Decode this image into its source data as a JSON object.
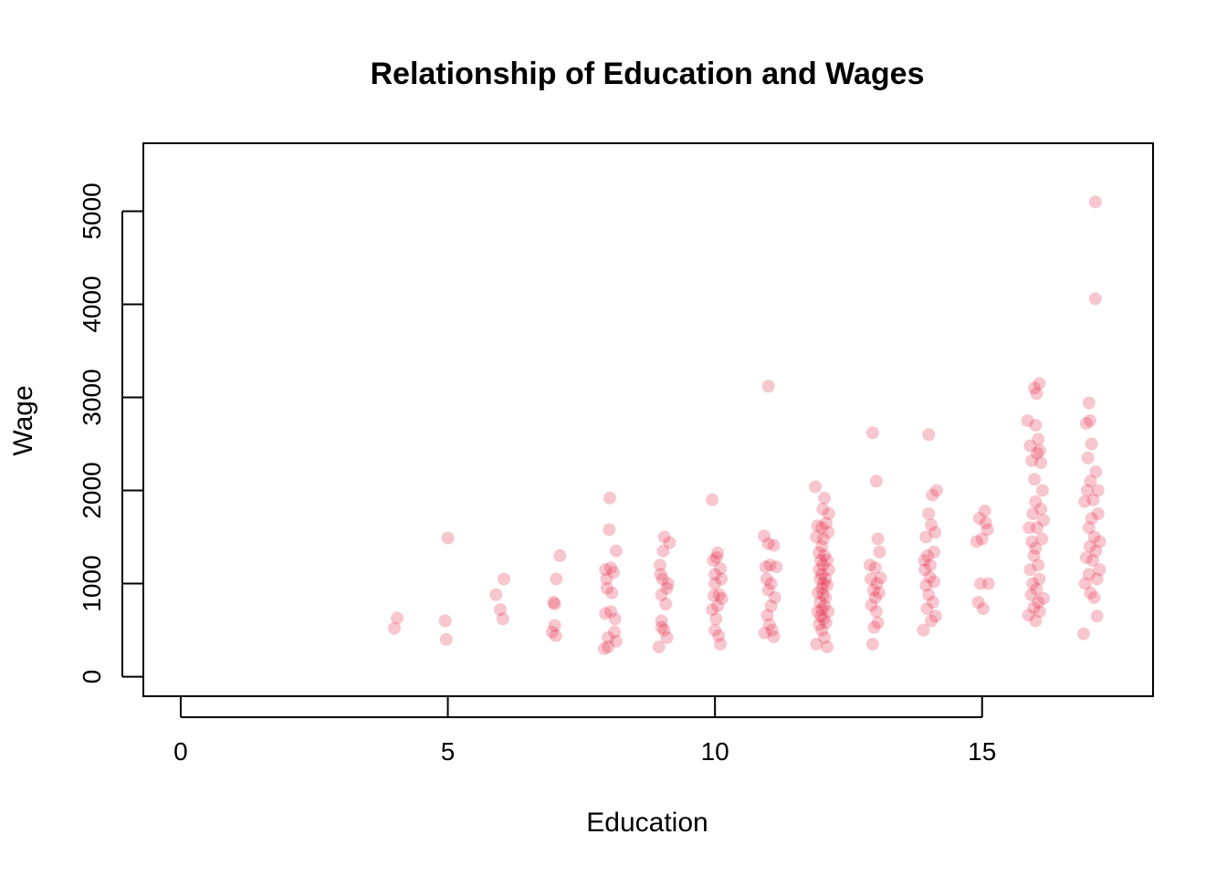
{
  "chart_data": {
    "type": "scatter",
    "title": "Relationship of Education and Wages",
    "xlabel": "Education",
    "ylabel": "Wage",
    "xlim": [
      -0.7,
      18.2
    ],
    "ylim": [
      -210,
      5730
    ],
    "xticks": [
      0,
      5,
      10,
      15
    ],
    "yticks": [
      0,
      1000,
      2000,
      3000,
      4000,
      5000
    ],
    "grid": false,
    "legend": "none",
    "point_color": "#E31A3C",
    "point_opacity": 0.25,
    "points": [
      [
        4.0,
        520
      ],
      [
        4.05,
        630
      ],
      [
        4.95,
        600
      ],
      [
        4.97,
        400
      ],
      [
        5.0,
        1490
      ],
      [
        5.9,
        880
      ],
      [
        5.98,
        720
      ],
      [
        6.03,
        620
      ],
      [
        6.05,
        1050
      ],
      [
        6.95,
        480
      ],
      [
        6.98,
        800
      ],
      [
        7.0,
        780
      ],
      [
        7.0,
        550
      ],
      [
        7.02,
        440
      ],
      [
        7.03,
        1050
      ],
      [
        7.1,
        1300
      ],
      [
        7.93,
        300
      ],
      [
        7.95,
        680
      ],
      [
        7.95,
        1150
      ],
      [
        7.97,
        1050
      ],
      [
        7.98,
        950
      ],
      [
        8.0,
        420
      ],
      [
        8.0,
        320
      ],
      [
        8.02,
        1580
      ],
      [
        8.03,
        1920
      ],
      [
        8.05,
        1170
      ],
      [
        8.05,
        700
      ],
      [
        8.07,
        900
      ],
      [
        8.1,
        1120
      ],
      [
        8.12,
        480
      ],
      [
        8.13,
        620
      ],
      [
        8.15,
        380
      ],
      [
        8.15,
        1350
      ],
      [
        8.95,
        320
      ],
      [
        8.97,
        1200
      ],
      [
        8.98,
        1100
      ],
      [
        9.0,
        600
      ],
      [
        9.0,
        880
      ],
      [
        9.0,
        530
      ],
      [
        9.02,
        1050
      ],
      [
        9.03,
        1350
      ],
      [
        9.05,
        500
      ],
      [
        9.05,
        1500
      ],
      [
        9.08,
        780
      ],
      [
        9.1,
        950
      ],
      [
        9.1,
        420
      ],
      [
        9.12,
        1000
      ],
      [
        9.15,
        1440
      ],
      [
        9.95,
        1900
      ],
      [
        9.95,
        720
      ],
      [
        9.97,
        1250
      ],
      [
        9.98,
        870
      ],
      [
        10.0,
        1100
      ],
      [
        10.0,
        500
      ],
      [
        10.0,
        1000
      ],
      [
        10.02,
        620
      ],
      [
        10.03,
        1280
      ],
      [
        10.05,
        760
      ],
      [
        10.05,
        1330
      ],
      [
        10.07,
        440
      ],
      [
        10.08,
        880
      ],
      [
        10.1,
        1160
      ],
      [
        10.1,
        350
      ],
      [
        10.12,
        1050
      ],
      [
        10.13,
        840
      ],
      [
        10.92,
        1510
      ],
      [
        10.93,
        470
      ],
      [
        10.95,
        1180
      ],
      [
        10.97,
        1050
      ],
      [
        10.98,
        660
      ],
      [
        11.0,
        3120
      ],
      [
        11.0,
        1430
      ],
      [
        11.0,
        930
      ],
      [
        11.02,
        560
      ],
      [
        11.03,
        1200
      ],
      [
        11.05,
        760
      ],
      [
        11.05,
        1000
      ],
      [
        11.07,
        500
      ],
      [
        11.1,
        1410
      ],
      [
        11.1,
        430
      ],
      [
        11.12,
        850
      ],
      [
        11.15,
        1180
      ],
      [
        11.88,
        2040
      ],
      [
        11.9,
        350
      ],
      [
        11.9,
        1500
      ],
      [
        11.92,
        700
      ],
      [
        11.92,
        1620
      ],
      [
        11.93,
        900
      ],
      [
        11.95,
        1150
      ],
      [
        11.95,
        560
      ],
      [
        11.95,
        1330
      ],
      [
        11.97,
        1050
      ],
      [
        11.97,
        800
      ],
      [
        11.98,
        1250
      ],
      [
        11.98,
        650
      ],
      [
        12.0,
        1600
      ],
      [
        12.0,
        950
      ],
      [
        12.0,
        1400
      ],
      [
        12.0,
        720
      ],
      [
        12.0,
        1100
      ],
      [
        12.0,
        500
      ],
      [
        12.02,
        1800
      ],
      [
        12.02,
        880
      ],
      [
        12.02,
        1200
      ],
      [
        12.03,
        620
      ],
      [
        12.03,
        1000
      ],
      [
        12.03,
        1480
      ],
      [
        12.05,
        760
      ],
      [
        12.05,
        1300
      ],
      [
        12.05,
        1920
      ],
      [
        12.05,
        420
      ],
      [
        12.07,
        1050
      ],
      [
        12.07,
        850
      ],
      [
        12.08,
        1650
      ],
      [
        12.08,
        580
      ],
      [
        12.1,
        1250
      ],
      [
        12.1,
        320
      ],
      [
        12.1,
        980
      ],
      [
        12.12,
        1550
      ],
      [
        12.12,
        700
      ],
      [
        12.13,
        1150
      ],
      [
        12.13,
        1750
      ],
      [
        12.9,
        1200
      ],
      [
        12.92,
        1050
      ],
      [
        12.93,
        770
      ],
      [
        12.95,
        2620
      ],
      [
        12.95,
        350
      ],
      [
        12.97,
        930
      ],
      [
        12.98,
        530
      ],
      [
        13.0,
        1170
      ],
      [
        13.0,
        850
      ],
      [
        13.02,
        2100
      ],
      [
        13.02,
        700
      ],
      [
        13.03,
        1000
      ],
      [
        13.05,
        580
      ],
      [
        13.05,
        1480
      ],
      [
        13.07,
        900
      ],
      [
        13.08,
        1340
      ],
      [
        13.1,
        1060
      ],
      [
        13.9,
        500
      ],
      [
        13.92,
        1250
      ],
      [
        13.93,
        1150
      ],
      [
        13.95,
        980
      ],
      [
        13.95,
        1500
      ],
      [
        13.97,
        730
      ],
      [
        13.98,
        1300
      ],
      [
        14.0,
        1750
      ],
      [
        14.0,
        2600
      ],
      [
        14.0,
        880
      ],
      [
        14.02,
        1070
      ],
      [
        14.03,
        1200
      ],
      [
        14.05,
        600
      ],
      [
        14.05,
        1630
      ],
      [
        14.07,
        1950
      ],
      [
        14.08,
        800
      ],
      [
        14.1,
        1340
      ],
      [
        14.1,
        1020
      ],
      [
        14.12,
        1550
      ],
      [
        14.13,
        650
      ],
      [
        14.15,
        2000
      ],
      [
        14.9,
        1450
      ],
      [
        14.93,
        800
      ],
      [
        14.95,
        1700
      ],
      [
        14.97,
        1000
      ],
      [
        15.0,
        1480
      ],
      [
        15.02,
        730
      ],
      [
        15.05,
        1780
      ],
      [
        15.07,
        1650
      ],
      [
        15.1,
        1580
      ],
      [
        15.12,
        1000
      ],
      [
        15.85,
        2750
      ],
      [
        15.87,
        660
      ],
      [
        15.88,
        1600
      ],
      [
        15.9,
        1150
      ],
      [
        15.9,
        2480
      ],
      [
        15.92,
        880
      ],
      [
        15.93,
        2320
      ],
      [
        15.93,
        1450
      ],
      [
        15.95,
        1000
      ],
      [
        15.95,
        1750
      ],
      [
        15.97,
        740
      ],
      [
        15.97,
        1300
      ],
      [
        15.98,
        2120
      ],
      [
        15.98,
        3100
      ],
      [
        16.0,
        2700
      ],
      [
        16.0,
        600
      ],
      [
        16.0,
        1380
      ],
      [
        16.0,
        1880
      ],
      [
        16.02,
        3040
      ],
      [
        16.02,
        940
      ],
      [
        16.03,
        2400
      ],
      [
        16.03,
        1600
      ],
      [
        16.05,
        800
      ],
      [
        16.05,
        1200
      ],
      [
        16.05,
        2550
      ],
      [
        16.07,
        3150
      ],
      [
        16.07,
        1050
      ],
      [
        16.08,
        2430
      ],
      [
        16.08,
        700
      ],
      [
        16.1,
        1800
      ],
      [
        16.1,
        2300
      ],
      [
        16.12,
        1480
      ],
      [
        16.13,
        2000
      ],
      [
        16.15,
        840
      ],
      [
        16.15,
        1680
      ],
      [
        16.9,
        460
      ],
      [
        16.92,
        1880
      ],
      [
        16.93,
        1000
      ],
      [
        16.95,
        2720
      ],
      [
        16.95,
        1280
      ],
      [
        16.97,
        2000
      ],
      [
        16.98,
        2350
      ],
      [
        17.0,
        2940
      ],
      [
        17.0,
        1600
      ],
      [
        17.0,
        1100
      ],
      [
        17.02,
        2750
      ],
      [
        17.02,
        1400
      ],
      [
        17.03,
        900
      ],
      [
        17.03,
        2100
      ],
      [
        17.05,
        2500
      ],
      [
        17.05,
        1700
      ],
      [
        17.07,
        1250
      ],
      [
        17.08,
        1900
      ],
      [
        17.1,
        850
      ],
      [
        17.1,
        1500
      ],
      [
        17.12,
        5100
      ],
      [
        17.12,
        4060
      ],
      [
        17.13,
        1350
      ],
      [
        17.13,
        2200
      ],
      [
        17.15,
        1050
      ],
      [
        17.15,
        650
      ],
      [
        17.17,
        1750
      ],
      [
        17.17,
        2000
      ],
      [
        17.2,
        1450
      ],
      [
        17.2,
        1150
      ]
    ]
  }
}
